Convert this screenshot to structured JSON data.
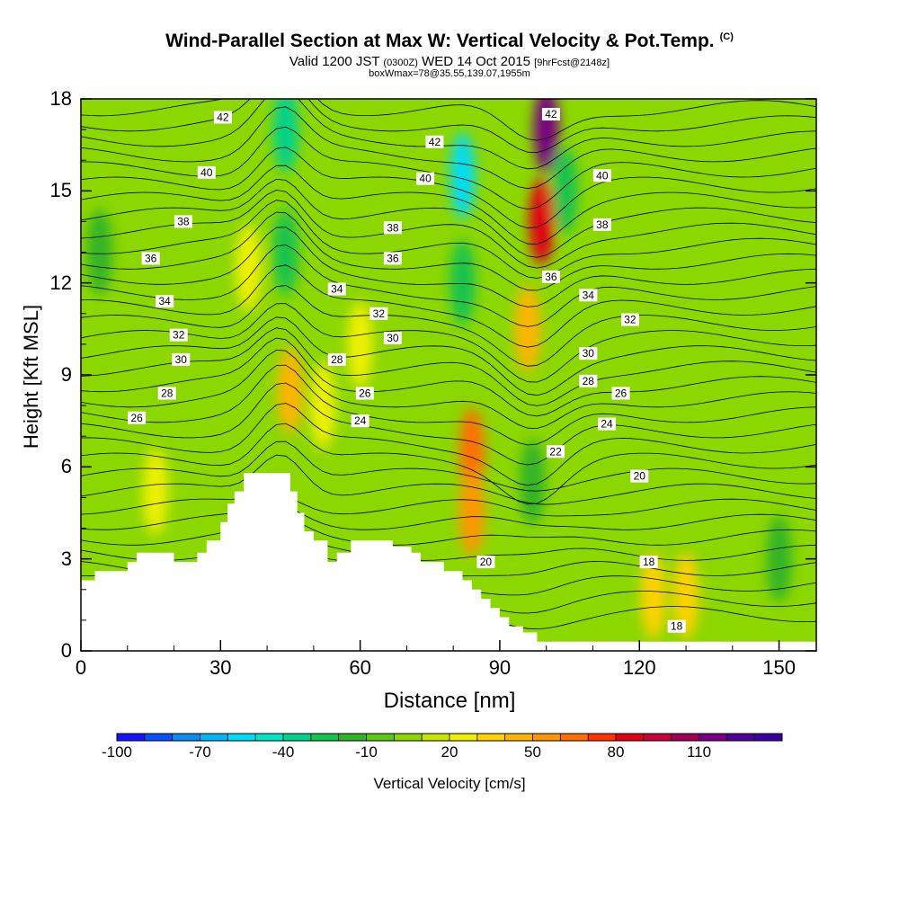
{
  "chart_data": {
    "type": "heatmap",
    "title": "Wind-Parallel Section at Max W: Vertical Velocity & Pot.Temp.",
    "title_corner": "(C)",
    "subtitle_parts": [
      "Valid 1200 JST ",
      "(0300Z)",
      " WED 14 Oct 2015 ",
      "[9hrFcst@2148z]"
    ],
    "subtitle2": "boxWmax=78@35.55,139.07,1955m",
    "xlabel": "Distance [nm]",
    "ylabel": "Height [Kft MSL]",
    "xlim": [
      0,
      158
    ],
    "ylim": [
      0,
      18
    ],
    "x_ticks": [
      0,
      30,
      60,
      90,
      120,
      150
    ],
    "y_ticks": [
      0,
      3,
      6,
      9,
      12,
      15,
      18
    ],
    "colorbar": {
      "label": "Vertical Velocity [cm/s]",
      "tick_values": [
        -100,
        -70,
        -40,
        -10,
        20,
        50,
        80,
        110
      ],
      "tick_labels": [
        "-100",
        "-70",
        "-40",
        "-10",
        "20",
        "50",
        "80",
        "110"
      ],
      "range": [
        -100,
        140
      ],
      "step": 10,
      "colors": [
        "#1414ff",
        "#0a50ff",
        "#0a8cf0",
        "#00b4f5",
        "#00dcf5",
        "#00e6c8",
        "#00d28c",
        "#14c350",
        "#32b428",
        "#5ac814",
        "#8cd700",
        "#c8e600",
        "#f0f000",
        "#ffd200",
        "#ffb400",
        "#ff9600",
        "#ff6e00",
        "#ff3200",
        "#e10014",
        "#c8003c",
        "#a0005a",
        "#780082",
        "#500096",
        "#3c00a0"
      ]
    },
    "terrain_nm_kft": [
      [
        0,
        2.3
      ],
      [
        3,
        2.3
      ],
      [
        3,
        2.6
      ],
      [
        10,
        2.6
      ],
      [
        10,
        2.9
      ],
      [
        12,
        2.9
      ],
      [
        12,
        3.2
      ],
      [
        20,
        3.2
      ],
      [
        20,
        2.9
      ],
      [
        25,
        2.9
      ],
      [
        25,
        3.2
      ],
      [
        27,
        3.2
      ],
      [
        27,
        3.6
      ],
      [
        30,
        3.6
      ],
      [
        30,
        4.2
      ],
      [
        31.5,
        4.2
      ],
      [
        31.5,
        4.8
      ],
      [
        33,
        4.8
      ],
      [
        33,
        5.2
      ],
      [
        35,
        5.2
      ],
      [
        35,
        5.8
      ],
      [
        45,
        5.8
      ],
      [
        45,
        5.2
      ],
      [
        46.5,
        5.2
      ],
      [
        46.5,
        4.5
      ],
      [
        48,
        4.5
      ],
      [
        48,
        3.9
      ],
      [
        50,
        3.9
      ],
      [
        50,
        3.6
      ],
      [
        53,
        3.6
      ],
      [
        53,
        2.9
      ],
      [
        55,
        2.9
      ],
      [
        55,
        3.2
      ],
      [
        58,
        3.2
      ],
      [
        58,
        3.6
      ],
      [
        67,
        3.6
      ],
      [
        67,
        3.4
      ],
      [
        71,
        3.4
      ],
      [
        71,
        3.2
      ],
      [
        73,
        3.2
      ],
      [
        73,
        2.9
      ],
      [
        78,
        2.9
      ],
      [
        78,
        2.6
      ],
      [
        82,
        2.6
      ],
      [
        82,
        2.3
      ],
      [
        84,
        2.3
      ],
      [
        84,
        2.0
      ],
      [
        86,
        2.0
      ],
      [
        86,
        1.7
      ],
      [
        88,
        1.7
      ],
      [
        88,
        1.4
      ],
      [
        90,
        1.4
      ],
      [
        90,
        1.1
      ],
      [
        92,
        1.1
      ],
      [
        92,
        0.8
      ],
      [
        95,
        0.8
      ],
      [
        95,
        0.6
      ],
      [
        98,
        0.6
      ],
      [
        98,
        0.3
      ],
      [
        158,
        0.3
      ]
    ],
    "velocity_features": [
      {
        "x": 16,
        "y": 5.2,
        "value": 25
      },
      {
        "x": 36,
        "y": 12.5,
        "value": 20
      },
      {
        "x": 44,
        "y": 17,
        "value": -40
      },
      {
        "x": 44,
        "y": 13,
        "value": -30
      },
      {
        "x": 45,
        "y": 8.5,
        "value": 40
      },
      {
        "x": 52,
        "y": 8.0,
        "value": 25
      },
      {
        "x": 60,
        "y": 10,
        "value": 20
      },
      {
        "x": 82,
        "y": 15.5,
        "value": -60
      },
      {
        "x": 82,
        "y": 12,
        "value": -30
      },
      {
        "x": 84,
        "y": 6.5,
        "value": 60
      },
      {
        "x": 84,
        "y": 4.5,
        "value": 50
      },
      {
        "x": 100,
        "y": 17,
        "value": 110
      },
      {
        "x": 99,
        "y": 14,
        "value": 80
      },
      {
        "x": 96,
        "y": 10.5,
        "value": 40
      },
      {
        "x": 97,
        "y": 5.5,
        "value": -20
      },
      {
        "x": 104,
        "y": 15,
        "value": -30
      },
      {
        "x": 123,
        "y": 1.8,
        "value": 30
      },
      {
        "x": 130,
        "y": 1.8,
        "value": 30
      },
      {
        "x": 4,
        "y": 13,
        "value": -20
      },
      {
        "x": 150,
        "y": 3,
        "value": -15
      }
    ],
    "isentrope_labels": [
      {
        "text": "42",
        "x": 30.5,
        "y": 17.4
      },
      {
        "text": "40",
        "x": 27,
        "y": 15.6
      },
      {
        "text": "38",
        "x": 22,
        "y": 14.0
      },
      {
        "text": "36",
        "x": 15,
        "y": 12.8
      },
      {
        "text": "34",
        "x": 18,
        "y": 11.4
      },
      {
        "text": "32",
        "x": 21,
        "y": 10.3
      },
      {
        "text": "30",
        "x": 21.5,
        "y": 9.5
      },
      {
        "text": "28",
        "x": 18.5,
        "y": 8.4
      },
      {
        "text": "26",
        "x": 12,
        "y": 7.6
      },
      {
        "text": "42",
        "x": 76,
        "y": 16.6
      },
      {
        "text": "40",
        "x": 74,
        "y": 15.4
      },
      {
        "text": "38",
        "x": 67,
        "y": 13.8
      },
      {
        "text": "36",
        "x": 67,
        "y": 12.8
      },
      {
        "text": "34",
        "x": 55,
        "y": 11.8
      },
      {
        "text": "32",
        "x": 64,
        "y": 11.0
      },
      {
        "text": "30",
        "x": 67,
        "y": 10.2
      },
      {
        "text": "28",
        "x": 55,
        "y": 9.5
      },
      {
        "text": "26",
        "x": 61,
        "y": 8.4
      },
      {
        "text": "24",
        "x": 60,
        "y": 7.5
      },
      {
        "text": "42",
        "x": 101,
        "y": 17.5
      },
      {
        "text": "40",
        "x": 112,
        "y": 15.5
      },
      {
        "text": "38",
        "x": 112,
        "y": 13.9
      },
      {
        "text": "36",
        "x": 101,
        "y": 12.2
      },
      {
        "text": "34",
        "x": 109,
        "y": 11.6
      },
      {
        "text": "32",
        "x": 118,
        "y": 10.8
      },
      {
        "text": "30",
        "x": 109,
        "y": 9.7
      },
      {
        "text": "28",
        "x": 109,
        "y": 8.8
      },
      {
        "text": "26",
        "x": 116,
        "y": 8.4
      },
      {
        "text": "24",
        "x": 113,
        "y": 7.4
      },
      {
        "text": "22",
        "x": 102,
        "y": 6.5
      },
      {
        "text": "20",
        "x": 120,
        "y": 5.7
      },
      {
        "text": "20",
        "x": 87,
        "y": 2.9
      },
      {
        "text": "18",
        "x": 122,
        "y": 2.9
      },
      {
        "text": "18",
        "x": 128,
        "y": 0.8
      }
    ]
  }
}
